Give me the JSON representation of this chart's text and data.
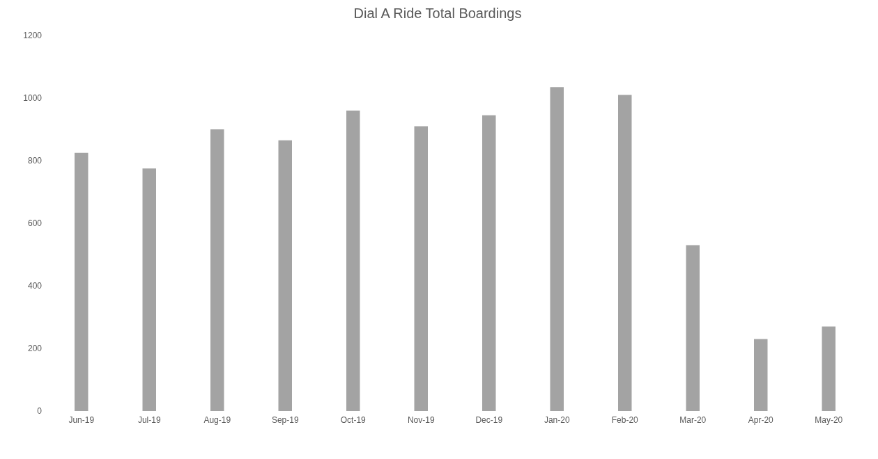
{
  "chart_data": {
    "type": "bar",
    "title": "Dial A Ride Total Boardings",
    "categories": [
      "Jun-19",
      "Jul-19",
      "Aug-19",
      "Sep-19",
      "Oct-19",
      "Nov-19",
      "Dec-19",
      "Jan-20",
      "Feb-20",
      "Mar-20",
      "Apr-20",
      "May-20"
    ],
    "values": [
      825,
      775,
      900,
      865,
      960,
      910,
      945,
      1035,
      1010,
      530,
      230,
      270
    ],
    "color": "#a3a3a3",
    "ylim": [
      0,
      1200
    ],
    "yticks": [
      0,
      200,
      400,
      600,
      800,
      1000,
      1200
    ],
    "grid": false
  }
}
